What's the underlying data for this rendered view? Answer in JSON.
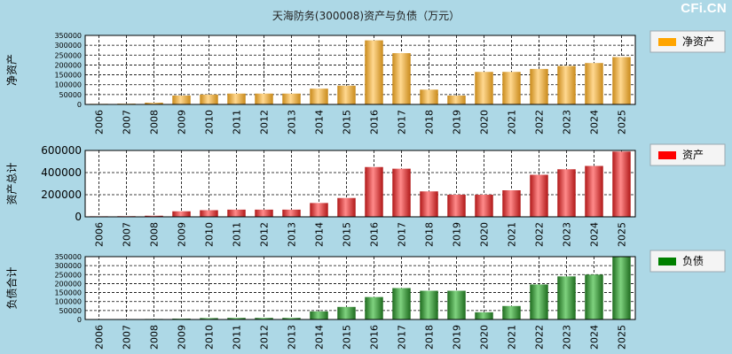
{
  "title": "天海防务(300008)资产与负债（万元）",
  "watermark": "CFi.CN",
  "chart_data": [
    {
      "type": "bar",
      "ylabel": "净资产",
      "legend": "净资产",
      "legend_color": "#ffa500",
      "bar_color_light": "#ffd890",
      "bar_color_dark": "#c98a1a",
      "yticks": [
        0,
        50000,
        100000,
        150000,
        200000,
        250000,
        300000,
        350000
      ],
      "ylim": [
        0,
        350000
      ],
      "categories": [
        "2006",
        "2007",
        "2008",
        "2009",
        "2010",
        "2011",
        "2012",
        "2013",
        "2014",
        "2015",
        "2016",
        "2017",
        "2018",
        "2019",
        "2020",
        "2021",
        "2022",
        "2023",
        "2024",
        "2025"
      ],
      "values": [
        3000,
        4000,
        9000,
        45000,
        50000,
        55000,
        55000,
        55000,
        80000,
        95000,
        325000,
        260000,
        75000,
        45000,
        165000,
        165000,
        180000,
        195000,
        210000,
        240000
      ]
    },
    {
      "type": "bar",
      "ylabel": "资产总计",
      "legend": "资产",
      "legend_color": "#ff0000",
      "bar_color_light": "#ff8a8a",
      "bar_color_dark": "#b01818",
      "yticks": [
        0,
        200000,
        400000,
        600000
      ],
      "ylim": [
        0,
        600000
      ],
      "categories": [
        "2006",
        "2007",
        "2008",
        "2009",
        "2010",
        "2011",
        "2012",
        "2013",
        "2014",
        "2015",
        "2016",
        "2017",
        "2018",
        "2019",
        "2020",
        "2021",
        "2022",
        "2023",
        "2024",
        "2025"
      ],
      "values": [
        5000,
        6000,
        10000,
        50000,
        60000,
        65000,
        65000,
        65000,
        125000,
        170000,
        450000,
        435000,
        230000,
        200000,
        200000,
        240000,
        380000,
        430000,
        460000,
        590000
      ]
    },
    {
      "type": "bar",
      "ylabel": "负债合计",
      "legend": "负债",
      "legend_color": "#008000",
      "bar_color_light": "#7fd27f",
      "bar_color_dark": "#1e6b1e",
      "yticks": [
        0,
        50000,
        100000,
        150000,
        200000,
        250000,
        300000,
        350000
      ],
      "ylim": [
        0,
        350000
      ],
      "categories": [
        "2006",
        "2007",
        "2008",
        "2009",
        "2010",
        "2011",
        "2012",
        "2013",
        "2014",
        "2015",
        "2016",
        "2017",
        "2018",
        "2019",
        "2020",
        "2021",
        "2022",
        "2023",
        "2024",
        "2025"
      ],
      "values": [
        2000,
        2500,
        3000,
        5000,
        8000,
        9000,
        9000,
        9000,
        45000,
        70000,
        125000,
        175000,
        160000,
        160000,
        40000,
        75000,
        195000,
        240000,
        250000,
        350000
      ]
    }
  ]
}
